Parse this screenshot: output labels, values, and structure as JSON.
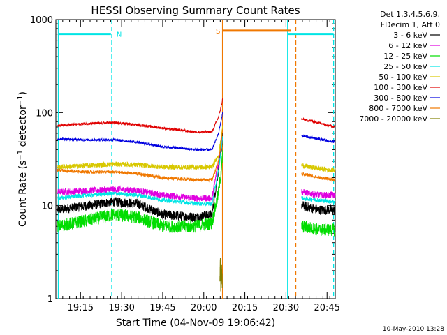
{
  "chart_data": {
    "type": "line",
    "title": "HESSI Observing Summary Count Rates",
    "xlabel": "Start Time (04-Nov-09 19:06:42)",
    "ylabel": "Count Rate (s⁻¹ detector⁻¹)",
    "yscale": "log",
    "ylim": [
      1,
      1000
    ],
    "xlim_minutes": [
      19.1,
      20.8
    ],
    "x_tick_labels": [
      "19:15",
      "19:30",
      "19:45",
      "20:00",
      "20:15",
      "20:30",
      "20:45"
    ],
    "x_tick_values_hours": [
      19.25,
      19.5,
      19.75,
      20.0,
      20.25,
      20.5,
      20.75
    ],
    "y_tick_labels": [
      "1",
      "10",
      "100",
      "1000"
    ],
    "y_tick_values": [
      1,
      10,
      100,
      1000
    ],
    "legend": {
      "placement": "top-right",
      "header": [
        "Det 1,3,4,5,6,9,",
        "FDecim 1, Att 0"
      ]
    },
    "footer_timestamp": "10-May-2010 13:28",
    "flags": [
      {
        "label": "N",
        "color": "#00e5e5",
        "level": 700,
        "segments": [
          [
            19.115,
            19.435
          ],
          [
            20.51,
            20.79
          ]
        ]
      },
      {
        "label": "S",
        "color": "#f07800",
        "level": 760,
        "segments": [
          [
            20.116,
            20.53
          ]
        ]
      }
    ],
    "vertical_markers": [
      {
        "x": 19.115,
        "color": "#00e5e5",
        "style": "solid"
      },
      {
        "x": 19.44,
        "color": "#00e5e5",
        "style": "dashed"
      },
      {
        "x": 20.114,
        "color": "#f07800",
        "style": "solid"
      },
      {
        "x": 20.51,
        "color": "#00e5e5",
        "style": "solid"
      },
      {
        "x": 20.56,
        "color": "#f07800",
        "style": "dashed"
      },
      {
        "x": 20.79,
        "color": "#00e5e5",
        "style": "dashed"
      }
    ],
    "data_gaps_hours": [
      [
        20.116,
        20.595
      ]
    ],
    "series": [
      {
        "name": "3 - 6 keV",
        "color": "#000000",
        "noise": 0.12,
        "x": [
          19.11,
          19.3,
          19.45,
          19.6,
          19.75,
          19.95,
          20.05,
          20.09,
          20.11,
          20.114,
          20.6,
          20.7,
          20.8
        ],
        "y": [
          9,
          10,
          11,
          10.5,
          8,
          7.5,
          8,
          25,
          45,
          55,
          10,
          9,
          9
        ]
      },
      {
        "name": "6 - 12 keV",
        "color": "#e000e0",
        "noise": 0.08,
        "x": [
          19.11,
          19.3,
          19.45,
          19.6,
          19.75,
          19.95,
          20.05,
          20.09,
          20.11,
          20.114,
          20.6,
          20.7,
          20.8
        ],
        "y": [
          14,
          14.5,
          15,
          14.5,
          13,
          12,
          12,
          30,
          55,
          70,
          14,
          13,
          13
        ]
      },
      {
        "name": "12 - 25 keV",
        "color": "#00dd00",
        "noise": 0.16,
        "x": [
          19.11,
          19.3,
          19.45,
          19.6,
          19.75,
          19.95,
          20.05,
          20.09,
          20.11,
          20.114,
          20.6,
          20.7,
          20.8
        ],
        "y": [
          6,
          7,
          8,
          7.5,
          6,
          6,
          6.5,
          14,
          28,
          35,
          6,
          5.5,
          5.5
        ]
      },
      {
        "name": "25 - 50 keV",
        "color": "#00e5e5",
        "noise": 0.05,
        "x": [
          19.11,
          19.3,
          19.45,
          19.6,
          19.75,
          19.95,
          20.05,
          20.09,
          20.11,
          20.114,
          20.6,
          20.7,
          20.8
        ],
        "y": [
          12,
          13,
          13.5,
          13,
          11.5,
          10.5,
          10.5,
          24,
          45,
          55,
          12,
          11.5,
          11
        ]
      },
      {
        "name": "50 - 100 keV",
        "color": "#d8c800",
        "noise": 0.06,
        "x": [
          19.11,
          19.3,
          19.45,
          19.6,
          19.75,
          19.95,
          20.05,
          20.09,
          20.11,
          20.114,
          20.6,
          20.7,
          20.8
        ],
        "y": [
          26,
          27,
          28,
          27.5,
          26,
          26,
          26,
          35,
          60,
          70,
          27,
          25,
          24
        ]
      },
      {
        "name": "100 - 300 keV",
        "color": "#e00000",
        "noise": 0.03,
        "x": [
          19.11,
          19.3,
          19.45,
          19.6,
          19.75,
          19.95,
          20.05,
          20.09,
          20.11,
          20.114,
          20.6,
          20.7,
          20.8
        ],
        "y": [
          73,
          76,
          78,
          74,
          68,
          62,
          62,
          90,
          125,
          140,
          85,
          78,
          70
        ]
      },
      {
        "name": "300 - 800 keV",
        "color": "#0000e0",
        "noise": 0.03,
        "x": [
          19.11,
          19.3,
          19.45,
          19.6,
          19.75,
          19.95,
          20.05,
          20.09,
          20.11,
          20.114,
          20.6,
          20.7,
          20.8
        ],
        "y": [
          52,
          51,
          51,
          48,
          43,
          40,
          40,
          60,
          90,
          100,
          56,
          52,
          48
        ]
      },
      {
        "name": "800 - 7000 keV",
        "color": "#f07800",
        "noise": 0.04,
        "x": [
          19.11,
          19.3,
          19.45,
          19.6,
          19.75,
          19.95,
          20.05,
          20.09,
          20.11,
          20.114,
          20.6,
          20.7,
          20.8
        ],
        "y": [
          24,
          23,
          23,
          22,
          20,
          19,
          19,
          30,
          55,
          65,
          22,
          20,
          19
        ]
      },
      {
        "name": "7000 - 20000 keV",
        "color": "#808000",
        "noise": 0.2,
        "x": [
          20.098,
          20.1,
          20.104,
          20.108,
          20.112
        ],
        "y": [
          1.3,
          2.8,
          1.2,
          2.0,
          1.5
        ]
      }
    ]
  }
}
